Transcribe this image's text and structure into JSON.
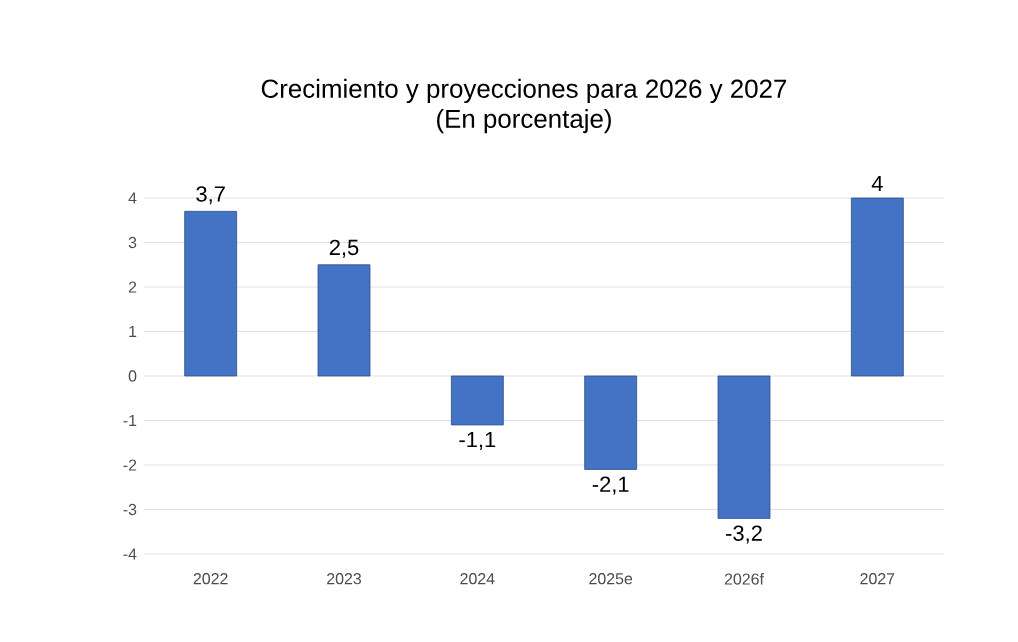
{
  "chart_data": {
    "type": "bar",
    "title": "Crecimiento y proyecciones para 2026 y 2027",
    "subtitle": "(En porcentaje)",
    "categories": [
      "2022",
      "2023",
      "2024",
      "2025e",
      "2026f",
      "2027"
    ],
    "values": [
      3.7,
      2.5,
      -1.1,
      -2.1,
      -3.2,
      4
    ],
    "value_labels": [
      "3,7",
      "2,5",
      "-1,1",
      "-2,1",
      "-3,2",
      "4"
    ],
    "color": "#4472c4",
    "ylim": [
      -4,
      4
    ],
    "yticks": [
      -4,
      -3,
      -2,
      -1,
      0,
      1,
      2,
      3,
      4
    ],
    "grid": "y"
  }
}
